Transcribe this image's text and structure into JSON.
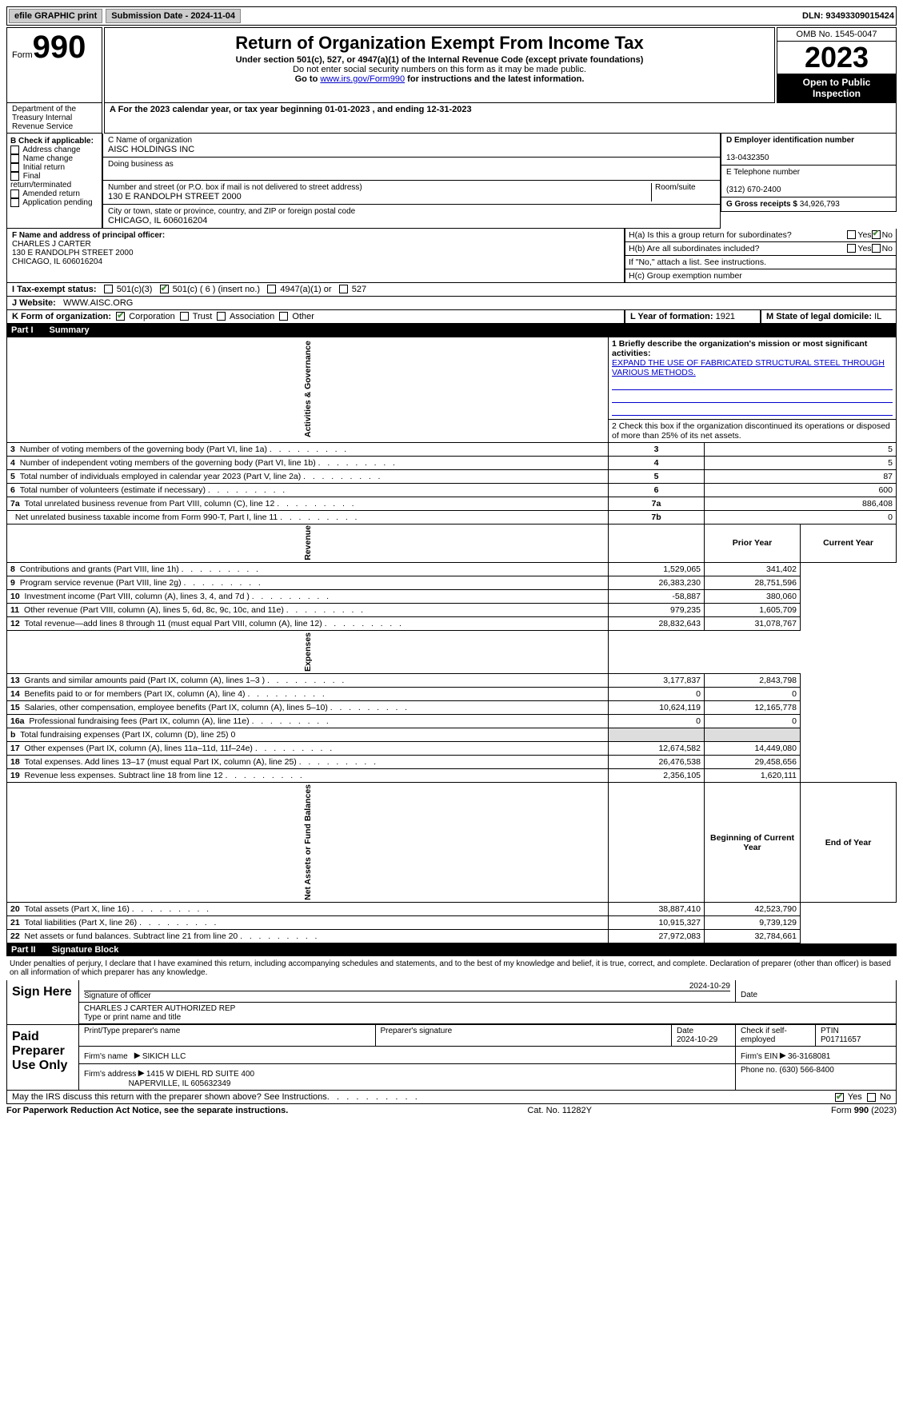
{
  "topbar": {
    "efile": "efile GRAPHIC print",
    "submission": "Submission Date - 2024-11-04",
    "dln": "DLN: 93493309015424"
  },
  "header": {
    "form_label": "Form",
    "form_num": "990",
    "title": "Return of Organization Exempt From Income Tax",
    "sub1": "Under section 501(c), 527, or 4947(a)(1) of the Internal Revenue Code (except private foundations)",
    "sub2": "Do not enter social security numbers on this form as it may be made public.",
    "sub3_pre": "Go to ",
    "sub3_link": "www.irs.gov/Form990",
    "sub3_post": " for instructions and the latest information.",
    "omb": "OMB No. 1545-0047",
    "year": "2023",
    "inspection": "Open to Public Inspection",
    "dept": "Department of the Treasury Internal Revenue Service"
  },
  "period": {
    "label": "A For the 2023 calendar year, or tax year beginning ",
    "begin": "01-01-2023",
    "mid": " , and ending ",
    "end": "12-31-2023"
  },
  "boxB": {
    "label": "B Check if applicable:",
    "items": [
      "Address change",
      "Name change",
      "Initial return",
      "Final return/terminated",
      "Amended return",
      "Application pending"
    ]
  },
  "boxC": {
    "name_label": "C Name of organization",
    "name": "AISC HOLDINGS INC",
    "dba_label": "Doing business as",
    "dba": "",
    "street_label": "Number and street (or P.O. box if mail is not delivered to street address)",
    "street": "130 E RANDOLPH STREET 2000",
    "room_label": "Room/suite",
    "city_label": "City or town, state or province, country, and ZIP or foreign postal code",
    "city": "CHICAGO, IL  606016204"
  },
  "boxD": {
    "label": "D Employer identification number",
    "val": "13-0432350"
  },
  "boxE": {
    "label": "E Telephone number",
    "val": "(312) 670-2400"
  },
  "boxG": {
    "label": "G Gross receipts $",
    "val": "34,926,793"
  },
  "boxF": {
    "label": "F  Name and address of principal officer:",
    "name": "CHARLES J CARTER",
    "addr1": "130 E RANDOLPH STREET 2000",
    "addr2": "CHICAGO, IL  606016204"
  },
  "boxH": {
    "a_label": "H(a)  Is this a group return for subordinates?",
    "b_label": "H(b)  Are all subordinates included?",
    "b_note": "If \"No,\" attach a list. See instructions.",
    "c_label": "H(c)  Group exemption number",
    "yes": "Yes",
    "no": "No"
  },
  "taxexempt": {
    "label": "I  Tax-exempt status:",
    "c3": "501(c)(3)",
    "c_other": "501(c) ( 6 ) (insert no.)",
    "a4947": "4947(a)(1) or",
    "s527": "527"
  },
  "website": {
    "label": "J  Website:",
    "val": "WWW.AISC.ORG"
  },
  "boxK": {
    "label": "K Form of organization:",
    "corp": "Corporation",
    "trust": "Trust",
    "assoc": "Association",
    "other": "Other"
  },
  "boxL": {
    "label": "L Year of formation:",
    "val": "1921"
  },
  "boxM": {
    "label": "M State of legal domicile:",
    "val": "IL"
  },
  "part1": {
    "label": "Part I",
    "title": "Summary"
  },
  "summary": {
    "mission_label": "1  Briefly describe the organization's mission or most significant activities:",
    "mission": "EXPAND THE USE OF FABRICATED STRUCTURAL STEEL THROUGH VARIOUS METHODS.",
    "line2": "2    Check this box       if the organization discontinued its operations or disposed of more than 25% of its net assets.",
    "lines_gov": [
      {
        "n": "3",
        "t": "Number of voting members of the governing body (Part VI, line 1a)",
        "k": "3",
        "v": "5"
      },
      {
        "n": "4",
        "t": "Number of independent voting members of the governing body (Part VI, line 1b)",
        "k": "4",
        "v": "5"
      },
      {
        "n": "5",
        "t": "Total number of individuals employed in calendar year 2023 (Part V, line 2a)",
        "k": "5",
        "v": "87"
      },
      {
        "n": "6",
        "t": "Total number of volunteers (estimate if necessary)",
        "k": "6",
        "v": "600"
      },
      {
        "n": "7a",
        "t": "Total unrelated business revenue from Part VIII, column (C), line 12",
        "k": "7a",
        "v": "886,408"
      },
      {
        "n": "",
        "t": "Net unrelated business taxable income from Form 990-T, Part I, line 11",
        "k": "7b",
        "v": "0"
      }
    ],
    "prior_hdr": "Prior Year",
    "current_hdr": "Current Year",
    "revenue": [
      {
        "n": "8",
        "t": "Contributions and grants (Part VIII, line 1h)",
        "p": "1,529,065",
        "c": "341,402"
      },
      {
        "n": "9",
        "t": "Program service revenue (Part VIII, line 2g)",
        "p": "26,383,230",
        "c": "28,751,596"
      },
      {
        "n": "10",
        "t": "Investment income (Part VIII, column (A), lines 3, 4, and 7d )",
        "p": "-58,887",
        "c": "380,060"
      },
      {
        "n": "11",
        "t": "Other revenue (Part VIII, column (A), lines 5, 6d, 8c, 9c, 10c, and 11e)",
        "p": "979,235",
        "c": "1,605,709"
      },
      {
        "n": "12",
        "t": "Total revenue—add lines 8 through 11 (must equal Part VIII, column (A), line 12)",
        "p": "28,832,643",
        "c": "31,078,767"
      }
    ],
    "expenses": [
      {
        "n": "13",
        "t": "Grants and similar amounts paid (Part IX, column (A), lines 1–3 )",
        "p": "3,177,837",
        "c": "2,843,798"
      },
      {
        "n": "14",
        "t": "Benefits paid to or for members (Part IX, column (A), line 4)",
        "p": "0",
        "c": "0"
      },
      {
        "n": "15",
        "t": "Salaries, other compensation, employee benefits (Part IX, column (A), lines 5–10)",
        "p": "10,624,119",
        "c": "12,165,778"
      },
      {
        "n": "16a",
        "t": "Professional fundraising fees (Part IX, column (A), line 11e)",
        "p": "0",
        "c": "0"
      },
      {
        "n": "b",
        "t": "Total fundraising expenses (Part IX, column (D), line 25) 0",
        "shade": true
      },
      {
        "n": "17",
        "t": "Other expenses (Part IX, column (A), lines 11a–11d, 11f–24e)",
        "p": "12,674,582",
        "c": "14,449,080"
      },
      {
        "n": "18",
        "t": "Total expenses. Add lines 13–17 (must equal Part IX, column (A), line 25)",
        "p": "26,476,538",
        "c": "29,458,656"
      },
      {
        "n": "19",
        "t": "Revenue less expenses. Subtract line 18 from line 12",
        "p": "2,356,105",
        "c": "1,620,111"
      }
    ],
    "boy_hdr": "Beginning of Current Year",
    "eoy_hdr": "End of Year",
    "netassets": [
      {
        "n": "20",
        "t": "Total assets (Part X, line 16)",
        "p": "38,887,410",
        "c": "42,523,790"
      },
      {
        "n": "21",
        "t": "Total liabilities (Part X, line 26)",
        "p": "10,915,327",
        "c": "9,739,129"
      },
      {
        "n": "22",
        "t": "Net assets or fund balances. Subtract line 21 from line 20",
        "p": "27,972,083",
        "c": "32,784,661"
      }
    ],
    "vert_gov": "Activities & Governance",
    "vert_rev": "Revenue",
    "vert_exp": "Expenses",
    "vert_net": "Net Assets or Fund Balances"
  },
  "part2": {
    "label": "Part II",
    "title": "Signature Block"
  },
  "sig": {
    "penalties": "Under penalties of perjury, I declare that I have examined this return, including accompanying schedules and statements, and to the best of my knowledge and belief, it is true, correct, and complete. Declaration of preparer (other than officer) is based on all information of which preparer has any knowledge.",
    "sign_here": "Sign Here",
    "officer_sig_label": "Signature of officer",
    "officer_date": "2024-10-29",
    "officer_name": "CHARLES J CARTER  AUTHORIZED REP",
    "type_name_label": "Type or print name and title",
    "date_label": "Date",
    "paid": "Paid Preparer Use Only",
    "prep_name_label": "Print/Type preparer's name",
    "prep_sig_label": "Preparer's signature",
    "prep_date": "2024-10-29",
    "self_emp": "Check        if self-employed",
    "ptin_label": "PTIN",
    "ptin": "P01711657",
    "firm_name_label": "Firm's name",
    "firm_name": "SIKICH LLC",
    "firm_ein_label": "Firm's EIN",
    "firm_ein": "36-3168081",
    "firm_addr_label": "Firm's address",
    "firm_addr1": "1415 W DIEHL RD SUITE 400",
    "firm_addr2": "NAPERVILLE, IL  605632349",
    "phone_label": "Phone no.",
    "phone": "(630) 566-8400",
    "discuss": "May the IRS discuss this return with the preparer shown above? See Instructions."
  },
  "footer": {
    "pra": "For Paperwork Reduction Act Notice, see the separate instructions.",
    "cat": "Cat. No. 11282Y",
    "form": "Form 990 (2023)"
  }
}
